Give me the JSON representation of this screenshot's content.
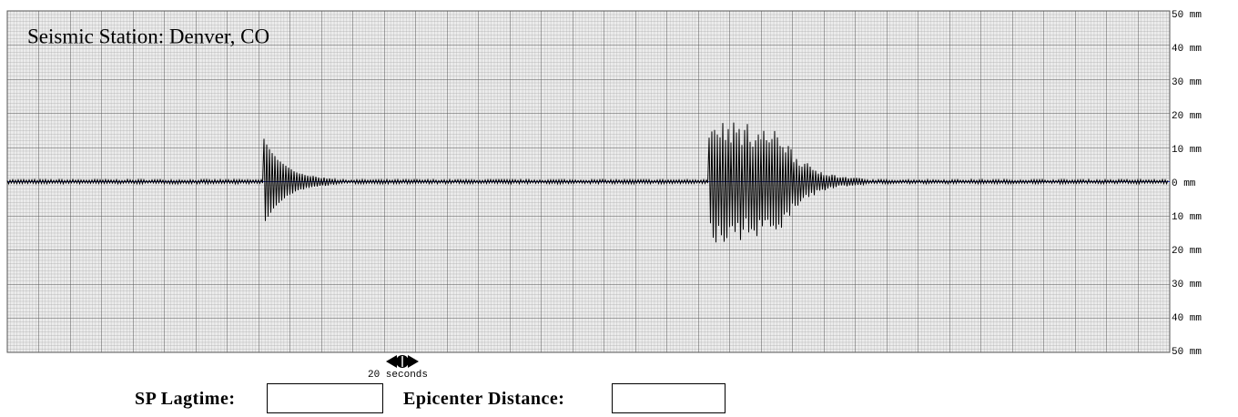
{
  "station_title": "Seismic Station: Denver, CO",
  "scale_labels": [
    "50 mm",
    "40 mm",
    "30 mm",
    "20 mm",
    "10 mm",
    "0 mm",
    "10 mm",
    "20 mm",
    "30 mm",
    "40 mm",
    "50 mm"
  ],
  "time_scale": "20 seconds",
  "fields": [
    {
      "label": "SP Lagtime:"
    },
    {
      "label": "Epicenter Distance:"
    }
  ]
}
